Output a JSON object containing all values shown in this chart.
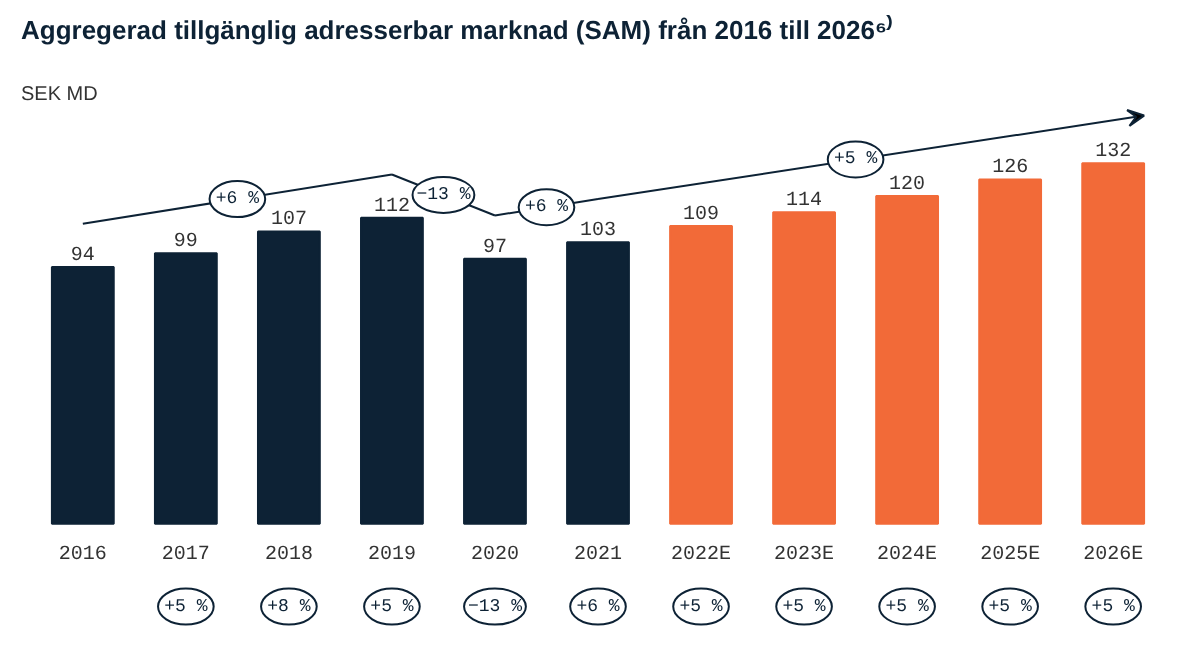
{
  "chart_data": {
    "type": "bar",
    "title": "Aggregerad tillgänglig adresserbar marknad (SAM) från 2016 till 2026⁶⁾",
    "categories": [
      "2016",
      "2017",
      "2018",
      "2019",
      "2020",
      "2021",
      "2022E",
      "2023E",
      "2024E",
      "2025E",
      "2026E"
    ],
    "values": [
      94,
      99,
      107,
      112,
      97,
      103,
      109,
      114,
      120,
      126,
      132
    ],
    "colors": [
      "#0d2235",
      "#0d2235",
      "#0d2235",
      "#0d2235",
      "#0d2235",
      "#0d2235",
      "#f26a38",
      "#f26a38",
      "#f26a38",
      "#f26a38",
      "#f26a38"
    ],
    "tick_labels": "x",
    "data_labels": true,
    "annotations": [
      "SEK MD",
      "+5 %",
      "+8 %",
      "+5 %",
      "−13 %",
      "+6 %",
      "+5 %",
      "+5 %",
      "+5 %",
      "+5 %",
      "+5 %",
      "+6 %",
      "−13 %",
      "+6 %",
      "+5 %"
    ]
  }
}
